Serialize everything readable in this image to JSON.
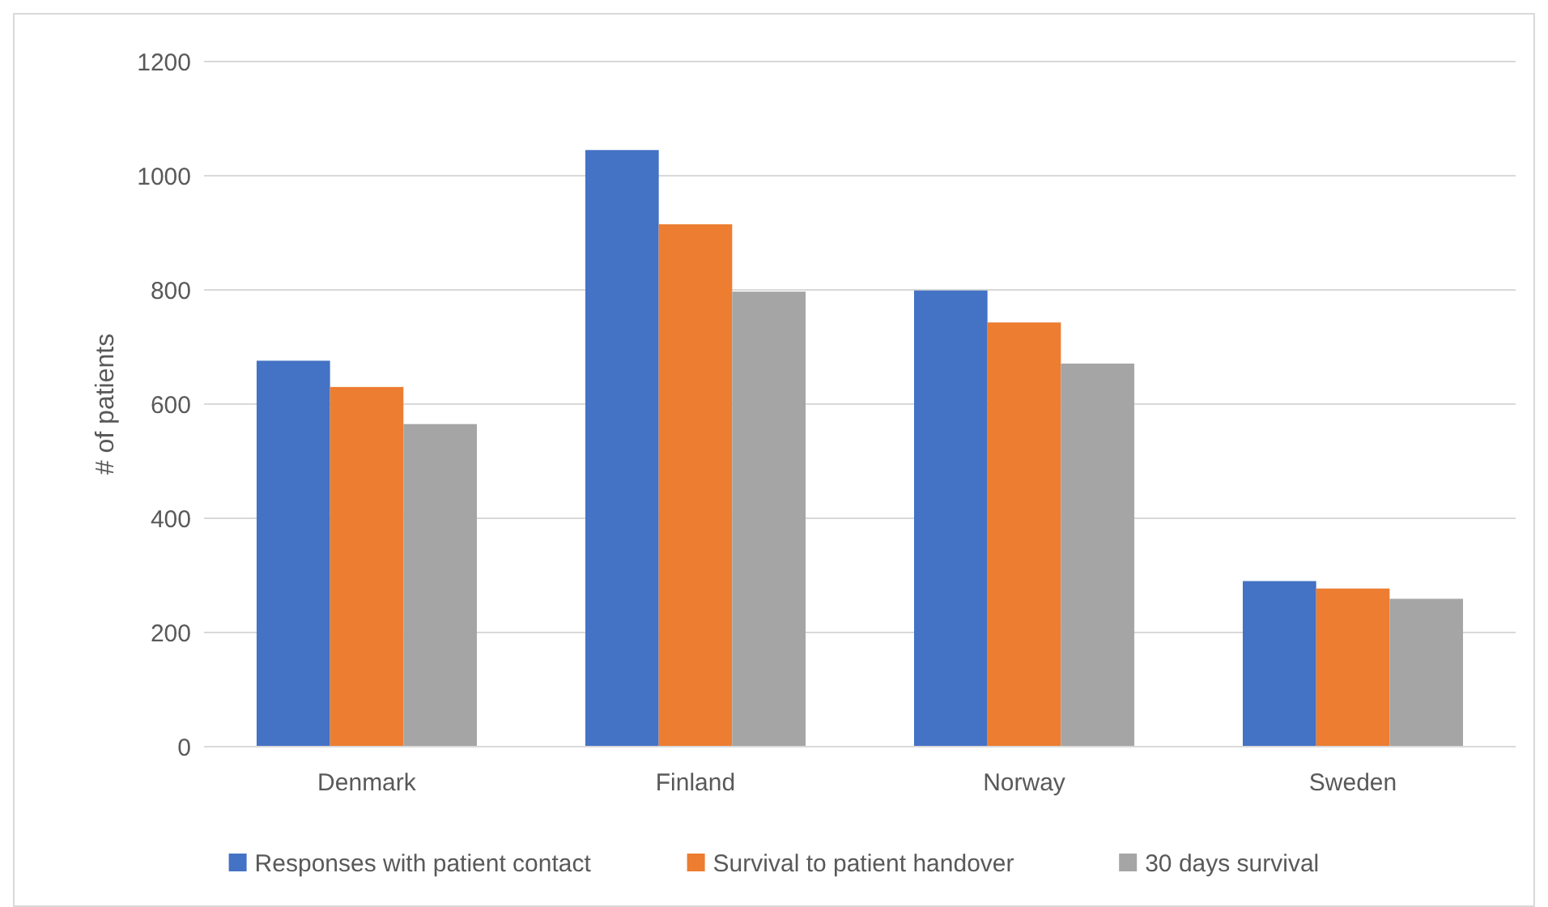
{
  "chart_data": {
    "type": "bar",
    "ylabel": "# of patients",
    "categories": [
      "Denmark",
      "Finland",
      "Norway",
      "Sweden"
    ],
    "series": [
      {
        "name": "Responses with patient contact",
        "color": "#4472c4",
        "values": [
          676,
          1045,
          799,
          290
        ]
      },
      {
        "name": "Survival to patient handover",
        "color": "#ed7d31",
        "values": [
          630,
          915,
          743,
          277
        ]
      },
      {
        "name": "30 days survival",
        "color": "#a5a5a5",
        "values": [
          565,
          797,
          671,
          259
        ]
      }
    ],
    "ylim": [
      0,
      1200
    ],
    "yticks": [
      0,
      200,
      400,
      600,
      800,
      1000,
      1200
    ],
    "grid": "y",
    "legend": "bottom"
  }
}
